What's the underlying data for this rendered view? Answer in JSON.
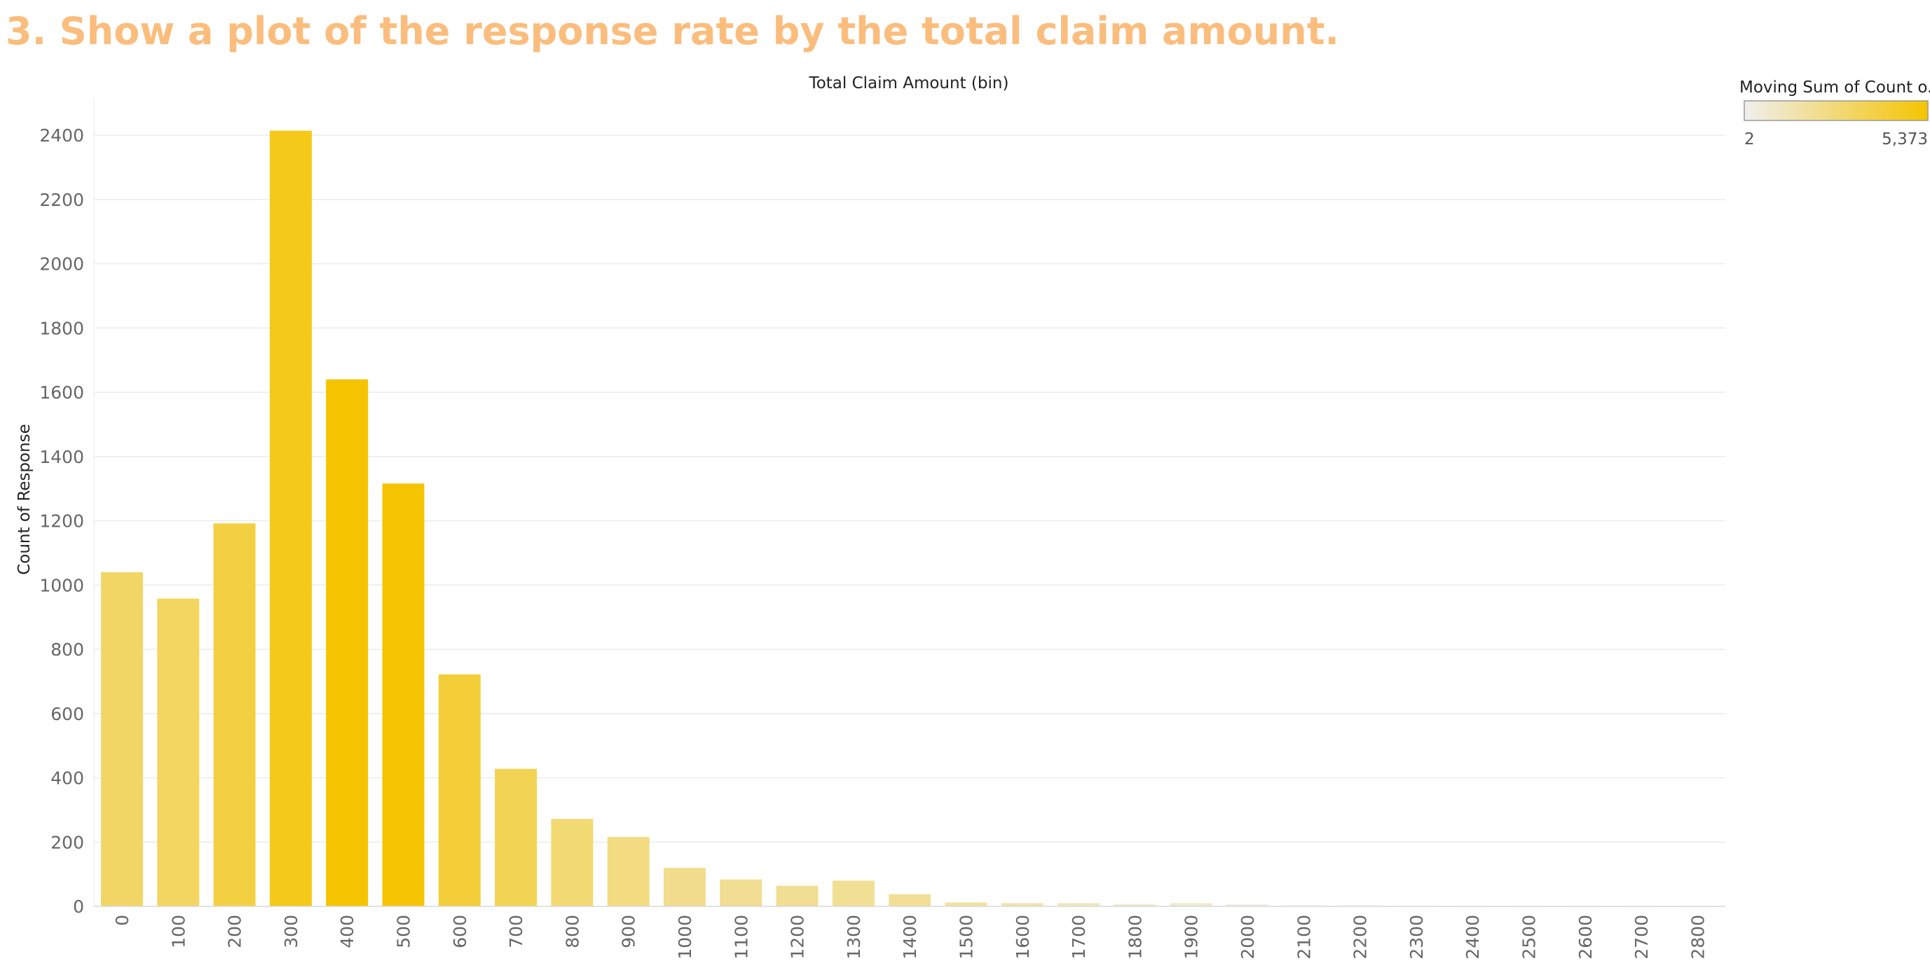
{
  "title": "3. Show a plot of the response rate by the total claim amount.",
  "colors": {
    "title": "#fbbd7d",
    "scale_low": "#efefef",
    "scale_high": "#f5c400"
  },
  "chart_data": {
    "type": "bar",
    "xlabel": "Total Claim Amount (bin)",
    "ylabel": "Count of Response",
    "ylim": [
      0,
      2500
    ],
    "y_ticks": [
      0,
      200,
      400,
      600,
      800,
      1000,
      1200,
      1400,
      1600,
      1800,
      2000,
      2200,
      2400
    ],
    "grid": true,
    "legend_placement": "top-right",
    "categories": [
      "0",
      "100",
      "200",
      "300",
      "400",
      "500",
      "600",
      "700",
      "800",
      "900",
      "1000",
      "1100",
      "1200",
      "1300",
      "1400",
      "1500",
      "1600",
      "1700",
      "1800",
      "1900",
      "2000",
      "2100",
      "2200",
      "2300",
      "2400",
      "2500",
      "2600",
      "2700",
      "2800"
    ],
    "values": [
      1040,
      958,
      1192,
      2414,
      1640,
      1316,
      722,
      428,
      272,
      216,
      120,
      84,
      64,
      80,
      38,
      12,
      10,
      10,
      6,
      10,
      6,
      3,
      3,
      2,
      2,
      2,
      2,
      2,
      2
    ],
    "color_values": [
      3100,
      3200,
      3900,
      4800,
      5373,
      5300,
      4100,
      3500,
      2800,
      2500,
      2200,
      2100,
      2100,
      2050,
      2000,
      1800,
      1500,
      1200,
      900,
      700,
      500,
      300,
      200,
      120,
      60,
      30,
      10,
      4,
      2
    ],
    "legend": {
      "title": "Moving Sum of Count o..",
      "min_label": "2",
      "max_label": "5,373",
      "min": 2,
      "max": 5373
    }
  }
}
